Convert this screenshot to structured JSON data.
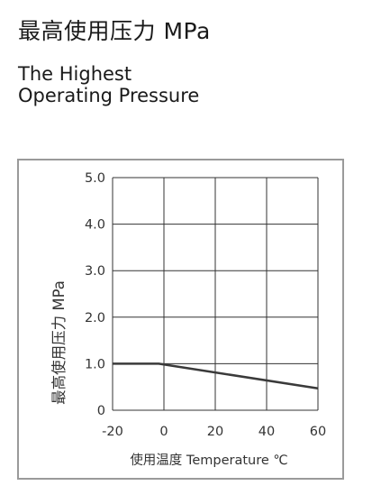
{
  "header": {
    "title_cn": "最高使用压力 MPa",
    "title_en_line1": "The Highest",
    "title_en_line2": "Operating Pressure"
  },
  "chart_data": {
    "type": "line",
    "xlabel": "使用温度 Temperature ℃",
    "ylabel": "最高使用压力 MPa",
    "xlim": [
      -20,
      60
    ],
    "ylim": [
      0,
      5
    ],
    "xticks": [
      "-20",
      "0",
      "20",
      "40",
      "60"
    ],
    "yticks": [
      "0",
      "1.0",
      "2.0",
      "3.0",
      "4.0",
      "5.0"
    ],
    "grid": true,
    "series": [
      {
        "values": [
          [
            -20,
            1.0
          ],
          [
            -2,
            1.0
          ],
          [
            60,
            0.47
          ]
        ]
      }
    ],
    "colors": {
      "line": "#3a3a3a",
      "grid": "#333333",
      "frame": "#9a9a9a"
    }
  }
}
